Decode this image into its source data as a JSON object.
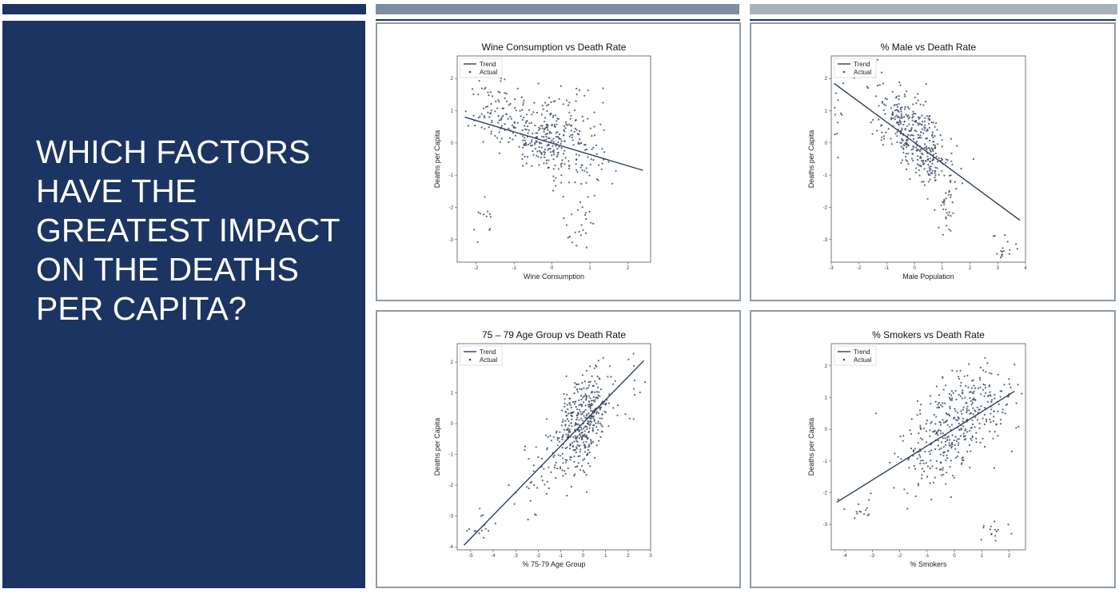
{
  "slide": {
    "title": "WHICH FACTORS HAVE THE GREATEST IMPACT ON THE DEATHS PER CAPITA?",
    "colors": {
      "panel": "#1c3461",
      "points": "#3c4b66",
      "trend": "#2d3e5a"
    }
  },
  "chart_data": [
    {
      "type": "scatter",
      "title": "Wine Consumption vs Death Rate",
      "xlabel": "Wine Consumption",
      "ylabel": "Deaths per Capita",
      "xlim": [
        -2.5,
        2.6
      ],
      "ylim": [
        -3.7,
        2.7
      ],
      "xticks": [
        -2,
        -1,
        0,
        1,
        2
      ],
      "yticks": [
        -3,
        -2,
        -1,
        0,
        1,
        2
      ],
      "legend": [
        "Trend",
        "Actual"
      ],
      "legend_position": "top-left",
      "trend": {
        "x": [
          -2.3,
          2.4
        ],
        "y": [
          0.8,
          -0.85
        ]
      },
      "clusters": [
        {
          "n": 320,
          "cx": 0.0,
          "cy": 0.1,
          "sx": 0.65,
          "sy": 0.55,
          "tilt": -0.3
        },
        {
          "n": 80,
          "cx": -1.5,
          "cy": 0.9,
          "sx": 0.35,
          "sy": 0.5,
          "tilt": 0
        },
        {
          "n": 25,
          "cx": 0.8,
          "cy": -2.6,
          "sx": 0.25,
          "sy": 0.55,
          "tilt": 0
        },
        {
          "n": 12,
          "cx": -1.8,
          "cy": -2.4,
          "sx": 0.15,
          "sy": 0.3,
          "tilt": 0
        },
        {
          "n": 20,
          "cx": 0.4,
          "cy": 1.3,
          "sx": 0.35,
          "sy": 0.35,
          "tilt": 0
        }
      ]
    },
    {
      "type": "scatter",
      "title": "% Male vs Death Rate",
      "xlabel": "Male Population",
      "ylabel": "Deaths per Capita",
      "xlim": [
        -3.0,
        4.0
      ],
      "ylim": [
        -3.7,
        2.7
      ],
      "xticks": [
        -3,
        -2,
        -1,
        0,
        1,
        2,
        3,
        4
      ],
      "yticks": [
        -3,
        -2,
        -1,
        0,
        1,
        2
      ],
      "legend": [
        "Trend",
        "Actual"
      ],
      "legend_position": "top-left",
      "trend": {
        "x": [
          -2.9,
          3.8
        ],
        "y": [
          1.85,
          -2.4
        ]
      },
      "clusters": [
        {
          "n": 380,
          "cx": 0.0,
          "cy": 0.2,
          "sx": 0.7,
          "sy": 0.6,
          "tilt": -0.8
        },
        {
          "n": 25,
          "cx": 1.1,
          "cy": -2.1,
          "sx": 0.15,
          "sy": 0.35,
          "tilt": 0
        },
        {
          "n": 20,
          "cx": 3.3,
          "cy": -3.3,
          "sx": 0.3,
          "sy": 0.25,
          "tilt": 0
        },
        {
          "n": 15,
          "cx": -2.8,
          "cy": 0.8,
          "sx": 0.15,
          "sy": 0.6,
          "tilt": 0
        }
      ]
    },
    {
      "type": "scatter",
      "title": "75 – 79 Age Group vs Death Rate",
      "xlabel": "% 75-79 Age Group",
      "ylabel": "Deaths per Capita",
      "xlim": [
        -5.6,
        3.0
      ],
      "ylim": [
        -4.1,
        2.6
      ],
      "xticks": [
        -5,
        -4,
        -3,
        -2,
        -1,
        0,
        1,
        2,
        3
      ],
      "yticks": [
        -4,
        -3,
        -2,
        -1,
        0,
        1,
        2
      ],
      "legend": [
        "Trend",
        "Actual"
      ],
      "legend_position": "top-left",
      "trend": {
        "x": [
          -5.3,
          2.7
        ],
        "y": [
          -3.95,
          2.05
        ]
      },
      "clusters": [
        {
          "n": 420,
          "cx": 0.0,
          "cy": 0.1,
          "sx": 0.6,
          "sy": 0.75,
          "tilt": 0.6
        },
        {
          "n": 40,
          "cx": -1.9,
          "cy": -1.6,
          "sx": 0.55,
          "sy": 0.6,
          "tilt": 0.6
        },
        {
          "n": 15,
          "cx": -4.5,
          "cy": -3.3,
          "sx": 0.5,
          "sy": 0.25,
          "tilt": 0
        },
        {
          "n": 15,
          "cx": 1.8,
          "cy": 1.2,
          "sx": 0.4,
          "sy": 0.6,
          "tilt": 0
        }
      ]
    },
    {
      "type": "scatter",
      "title": "% Smokers vs Death Rate",
      "xlabel": "% Smokers",
      "ylabel": "Deaths per Capita",
      "xlim": [
        -4.5,
        2.6
      ],
      "ylim": [
        -3.8,
        2.7
      ],
      "xticks": [
        -4,
        -3,
        -2,
        -1,
        0,
        1,
        2
      ],
      "yticks": [
        -3,
        -2,
        -1,
        0,
        1,
        2
      ],
      "legend": [
        "Trend",
        "Actual"
      ],
      "legend_position": "top-left",
      "trend": {
        "x": [
          -4.3,
          2.2
        ],
        "y": [
          -2.3,
          1.2
        ]
      },
      "clusters": [
        {
          "n": 380,
          "cx": 0.0,
          "cy": 0.1,
          "sx": 1.0,
          "sy": 0.85,
          "tilt": 0.5
        },
        {
          "n": 40,
          "cx": 0.9,
          "cy": 1.0,
          "sx": 0.55,
          "sy": 0.55,
          "tilt": 0
        },
        {
          "n": 15,
          "cx": 1.4,
          "cy": -3.2,
          "sx": 0.3,
          "sy": 0.15,
          "tilt": 0
        },
        {
          "n": 15,
          "cx": -3.3,
          "cy": -2.5,
          "sx": 0.4,
          "sy": 0.3,
          "tilt": 0
        }
      ]
    }
  ]
}
